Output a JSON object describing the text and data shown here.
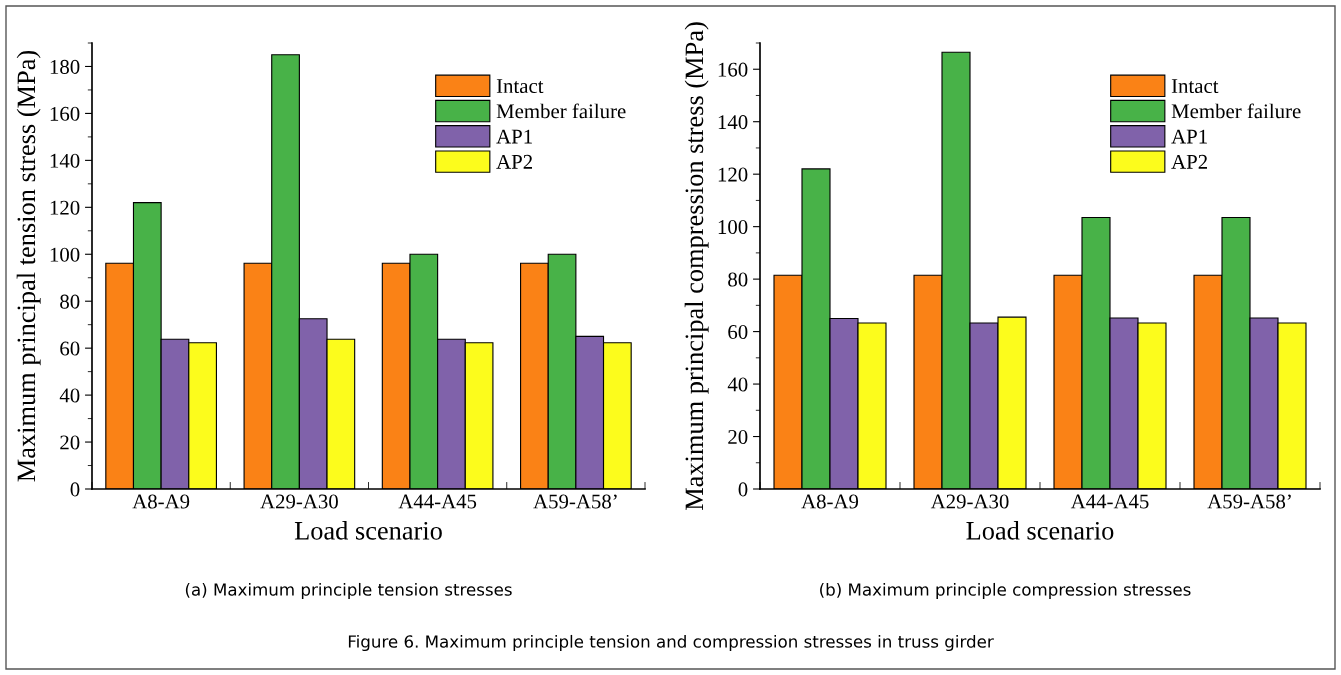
{
  "chart_data": [
    {
      "type": "bar",
      "xlabel": "Load scenario",
      "ylabel": "Maximum principal tension stress (MPa)",
      "categories": [
        "A8-A9",
        "A29-A30",
        "A44-A45",
        "A59-A58’"
      ],
      "series": [
        {
          "name": "Intact",
          "color": "#fa8216",
          "values": [
            96.2,
            96.2,
            96.2,
            96.2
          ]
        },
        {
          "name": "Member failure",
          "color": "#48b248",
          "values": [
            122,
            185,
            100,
            100
          ]
        },
        {
          "name": "AP1",
          "color": "#8062aa",
          "values": [
            63.8,
            72.5,
            63.8,
            65
          ]
        },
        {
          "name": "AP2",
          "color": "#fcfc1c",
          "values": [
            62.3,
            63.8,
            62.3,
            62.3
          ]
        }
      ],
      "ylim": [
        0,
        190
      ],
      "yticks": [
        0,
        20,
        40,
        60,
        80,
        100,
        120,
        140,
        160,
        180
      ],
      "legend": "top right",
      "grid": false,
      "annotations": [
        "(a) Maximum principle tension stresses",
        "Figure 6. Maximum principle tension and compression stresses in truss girder"
      ]
    },
    {
      "type": "bar",
      "xlabel": "Load scenario",
      "ylabel": "Maximum principal compression stress (MPa)",
      "categories": [
        "A8-A9",
        "A29-A30",
        "A44-A45",
        "A59-A58’"
      ],
      "series": [
        {
          "name": "Intact",
          "color": "#fa8216",
          "values": [
            81.5,
            81.5,
            81.5,
            81.5
          ]
        },
        {
          "name": "Member failure",
          "color": "#48b248",
          "values": [
            122,
            166.5,
            103.5,
            103.5
          ]
        },
        {
          "name": "AP1",
          "color": "#8062aa",
          "values": [
            65,
            63.3,
            65.2,
            65.2
          ]
        },
        {
          "name": "AP2",
          "color": "#fcfc1c",
          "values": [
            63.3,
            65.5,
            63.3,
            63.3
          ]
        }
      ],
      "ylim": [
        0,
        170
      ],
      "yticks": [
        0,
        20,
        40,
        60,
        80,
        100,
        120,
        140,
        160
      ],
      "legend": "top right",
      "grid": false,
      "annotations": [
        "(b) Maximum principle compression stresses"
      ]
    }
  ]
}
